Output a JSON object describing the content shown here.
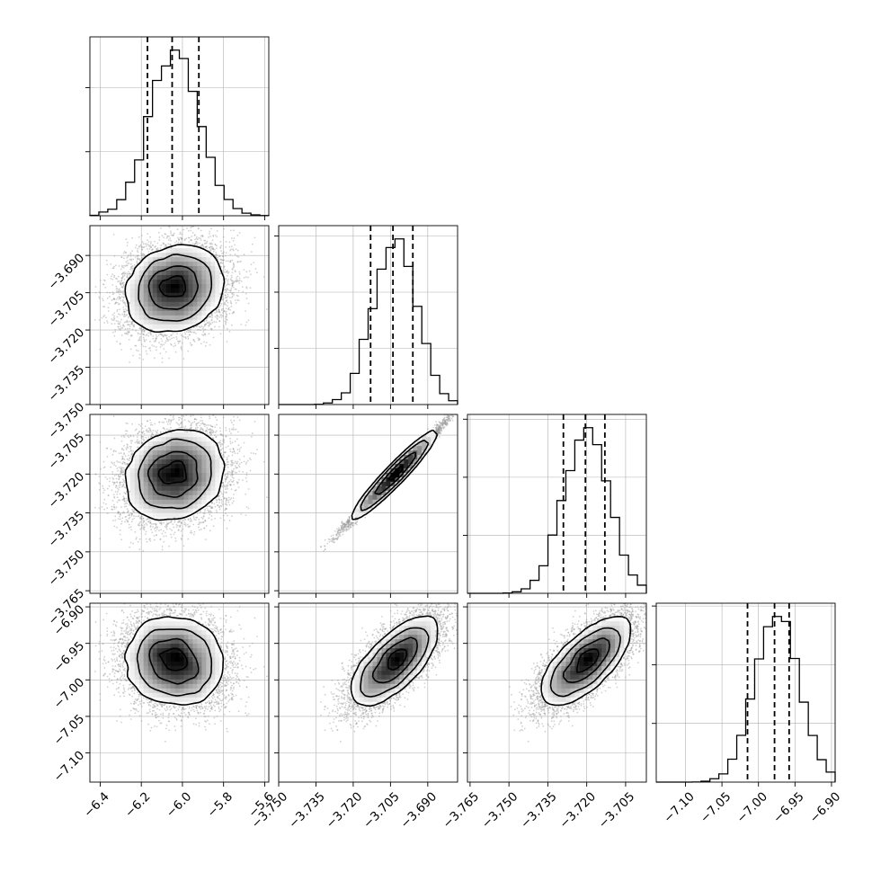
{
  "chart_data": {
    "type": "corner",
    "title": "",
    "parameters": [
      {
        "ticks": [
          "−6.4",
          "−6.2",
          "−6.0",
          "−5.8",
          "−5.6"
        ],
        "tick_values": [
          -6.4,
          -6.2,
          -6.0,
          -5.8,
          -5.6
        ],
        "range": [
          -6.45,
          -5.58
        ],
        "quantiles": [
          -6.17,
          -6.05,
          -5.92
        ],
        "mean": -6.04,
        "sd": 0.12
      },
      {
        "ticks": [
          "−3.750",
          "−3.735",
          "−3.720",
          "−3.705",
          "−3.690"
        ],
        "tick_values": [
          -3.75,
          -3.735,
          -3.72,
          -3.705,
          -3.69
        ],
        "range": [
          -3.75,
          -3.678
        ],
        "quantiles": [
          -3.713,
          -3.704,
          -3.696
        ],
        "mean": -3.7035,
        "sd": 0.0085
      },
      {
        "ticks": [
          "−3.765",
          "−3.750",
          "−3.735",
          "−3.720",
          "−3.705"
        ],
        "tick_values": [
          -3.765,
          -3.75,
          -3.735,
          -3.72,
          -3.705
        ],
        "range": [
          -3.766,
          -3.697
        ],
        "quantiles": [
          -3.729,
          -3.7205,
          -3.713
        ],
        "mean": -3.7205,
        "sd": 0.0085
      },
      {
        "ticks": [
          "−7.10",
          "−7.05",
          "−7.00",
          "−6.95",
          "−6.90"
        ],
        "tick_values": [
          -7.1,
          -7.05,
          -7.0,
          -6.95,
          -6.9
        ],
        "range": [
          -7.14,
          -6.895
        ],
        "quantiles": [
          -7.015,
          -6.978,
          -6.958
        ],
        "mean": -6.975,
        "sd": 0.03
      }
    ],
    "correlations": [
      [
        0,
        1,
        0.15
      ],
      [
        0,
        2,
        0.15
      ],
      [
        0,
        3,
        -0.1
      ],
      [
        1,
        2,
        0.99
      ],
      [
        1,
        3,
        0.7
      ],
      [
        2,
        3,
        0.7
      ]
    ],
    "histogram_bins": 20,
    "contour_levels": [
      0.12,
      0.39,
      0.68,
      0.86
    ],
    "grid": true,
    "colors": {
      "line": "#000000",
      "grid": "#b0b0b0",
      "points": "#9a9a9a",
      "background": "#ffffff"
    }
  }
}
